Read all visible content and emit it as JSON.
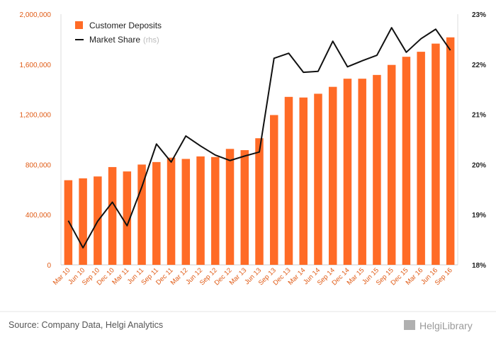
{
  "chart_data": {
    "type": "bar",
    "categories": [
      "Mar 10",
      "Jun 10",
      "Sep 10",
      "Dec 10",
      "Mar 11",
      "Jun 11",
      "Sep 11",
      "Dec 11",
      "Mar 12",
      "Jun 12",
      "Sep 12",
      "Dec 12",
      "Mar 13",
      "Jun 13",
      "Sep 13",
      "Dec 13",
      "Mar 14",
      "Jun 14",
      "Sep 14",
      "Dec 14",
      "Mar 15",
      "Jun 15",
      "Sep 15",
      "Dec 15",
      "Mar 16",
      "Jun 16",
      "Sep 16"
    ],
    "series": [
      {
        "name": "Customer Deposits",
        "type": "bar",
        "axis": "left",
        "color": "#ff6b26",
        "values": [
          675000,
          690000,
          705000,
          780000,
          745000,
          800000,
          820000,
          855000,
          845000,
          865000,
          860000,
          925000,
          915000,
          1010000,
          1195000,
          1340000,
          1335000,
          1365000,
          1420000,
          1485000,
          1485000,
          1515000,
          1595000,
          1660000,
          1700000,
          1765000,
          1815000
        ]
      },
      {
        "name": "Market Share",
        "type": "line",
        "axis": "right",
        "color": "#111111",
        "values": [
          18.88,
          18.34,
          18.87,
          19.25,
          18.78,
          19.55,
          20.41,
          20.05,
          20.57,
          20.37,
          20.19,
          20.08,
          20.17,
          20.25,
          22.12,
          22.22,
          21.84,
          21.86,
          22.46,
          21.95,
          22.07,
          22.18,
          22.73,
          22.24,
          22.51,
          22.7,
          22.28
        ]
      }
    ],
    "y_left": {
      "ylim": [
        0,
        2000000
      ],
      "ticks": [
        "0",
        "400,000",
        "800,000",
        "1,200,000",
        "1,600,000",
        "2,000,000"
      ],
      "tick_values": [
        0,
        400000,
        800000,
        1200000,
        1600000,
        2000000
      ]
    },
    "y_right": {
      "ylim": [
        18,
        23
      ],
      "ticks": [
        "18%",
        "19%",
        "20%",
        "21%",
        "22%",
        "23%"
      ],
      "tick_values": [
        18,
        19,
        20,
        21,
        22,
        23
      ]
    },
    "grid": false,
    "legend": {
      "position": "top-left",
      "items": [
        {
          "label": "Customer Deposits",
          "marker": "square"
        },
        {
          "label": "Market Share",
          "marker": "line",
          "note": "(rhs)"
        }
      ]
    }
  },
  "footer": {
    "source": "Source: Company Data, Helgi Analytics",
    "logo": "HelgiLibrary"
  }
}
